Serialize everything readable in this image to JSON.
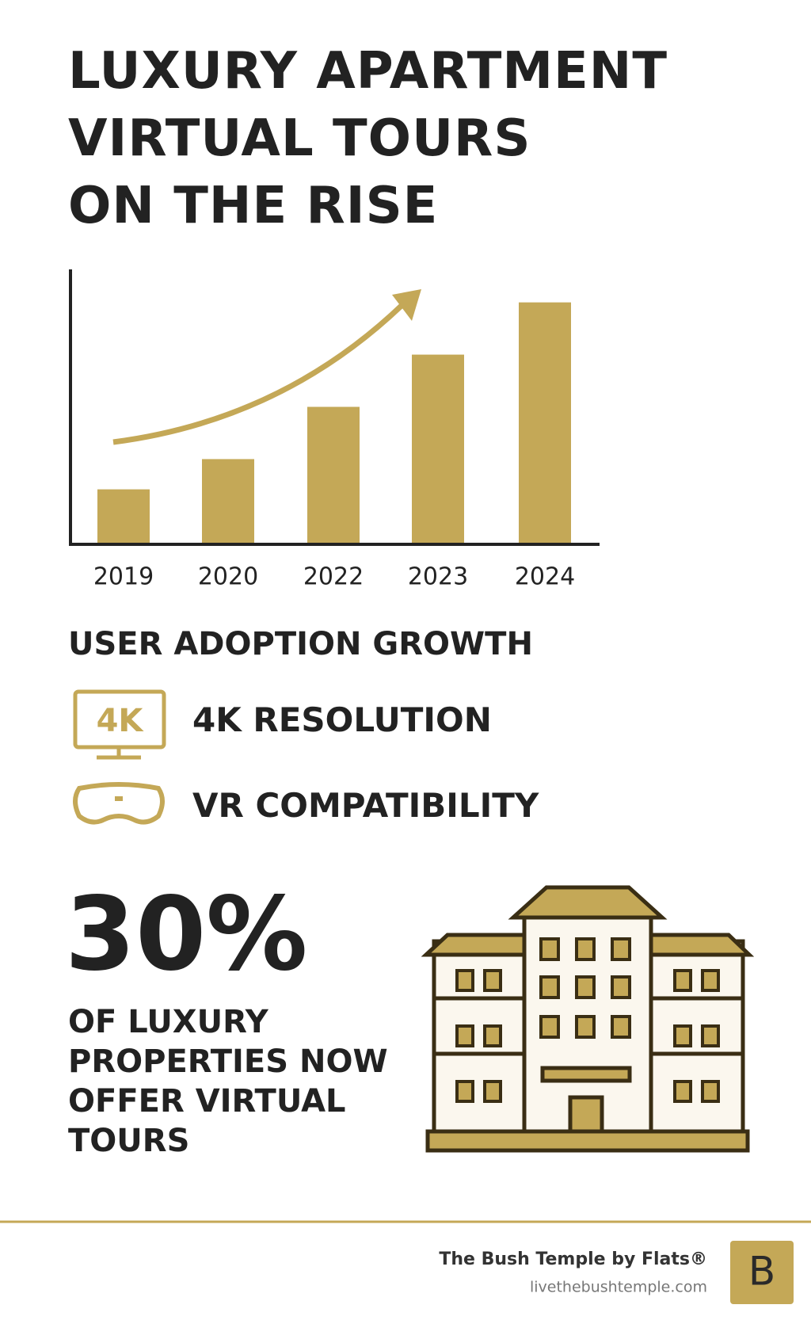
{
  "title_lines": [
    "LUXURY APARTMENT",
    "VIRTUAL TOURS",
    "ON THE RISE"
  ],
  "chart_data": {
    "type": "bar",
    "categories": [
      "2019",
      "2020",
      "2022",
      "2023",
      "2024"
    ],
    "values": [
      20,
      31,
      50,
      69,
      88
    ],
    "color": "#c4a857",
    "ylim": [
      0,
      100
    ]
  },
  "section_title": "USER ADOPTION GROWTH",
  "features": [
    "4K RESOLUTION",
    "VR COMPATIBILITY"
  ],
  "stat": {
    "value": "30%",
    "description": "OF LUXURY PROPERTIES NOW OFFER VIRTUAL TOURS"
  },
  "footer": {
    "brand": "The Bush Temple by Flats®",
    "url": "livethebushtemple.com",
    "logo": "B"
  }
}
